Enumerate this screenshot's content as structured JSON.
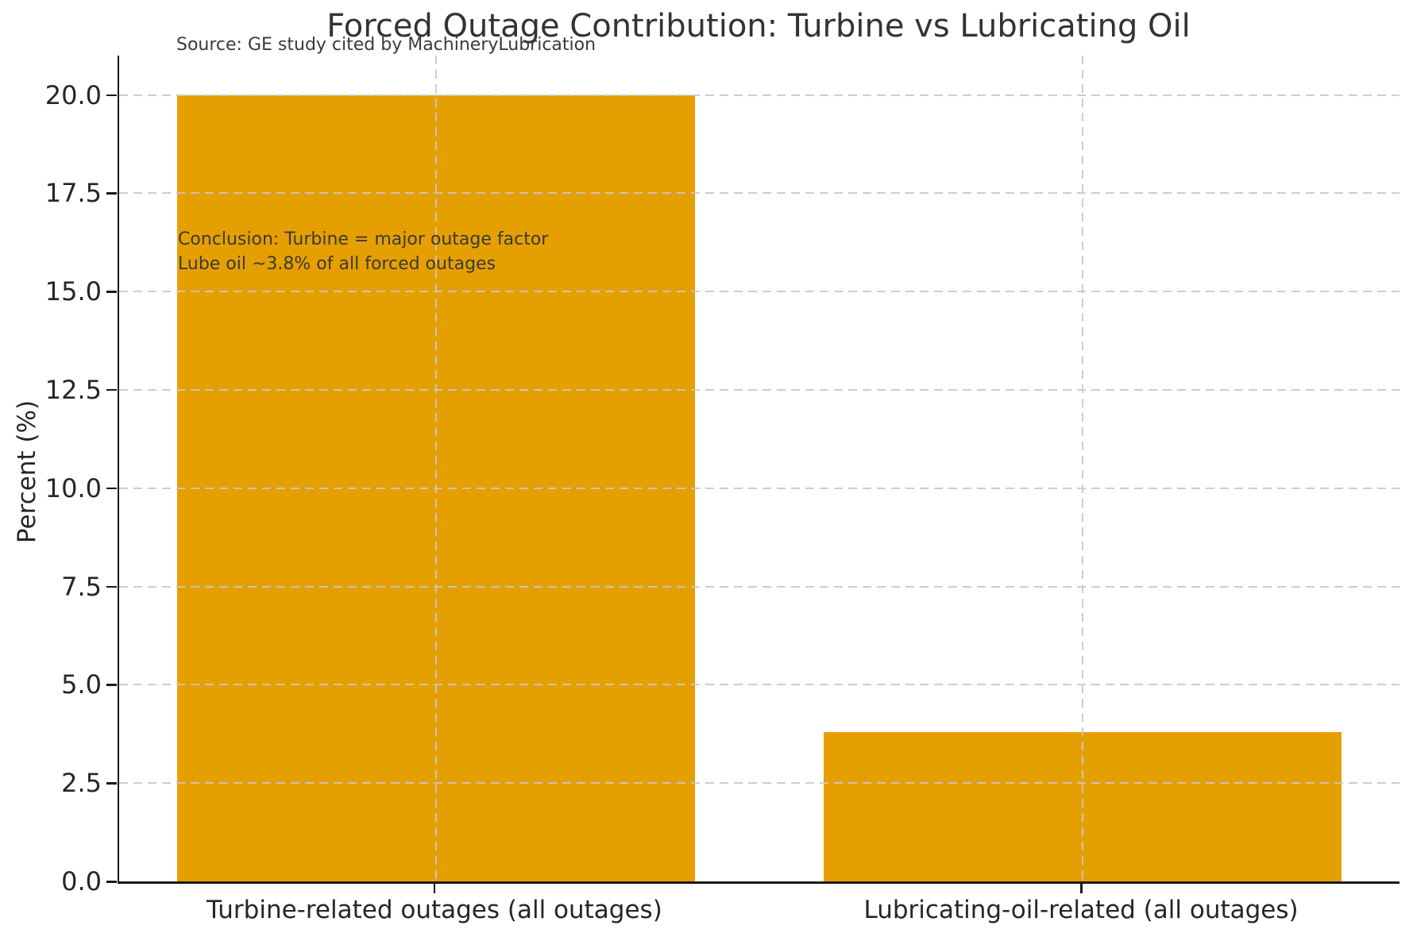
{
  "title": "Forced Outage Contribution: Turbine vs Lubricating Oil",
  "subtitle": "Source: GE study cited by MachineryLubrication",
  "annotation": {
    "line1": "Conclusion: Turbine = major outage factor",
    "line2": "Lube oil ~3.8% of all forced outages"
  },
  "chart_data": {
    "type": "bar",
    "title": "Forced Outage Contribution: Turbine vs Lubricating Oil",
    "subtitle": "Source: GE study cited by MachineryLubrication",
    "categories": [
      "Turbine-related outages (all outages)",
      "Lubricating-oil-related (all outages)"
    ],
    "values": [
      20.0,
      3.8
    ],
    "xlabel": "",
    "ylabel": "Percent (%)",
    "ylim": [
      0,
      21.0
    ],
    "xlim": [
      -0.49,
      1.49
    ],
    "bar_width": 0.8,
    "yticks": [
      0.0,
      2.5,
      5.0,
      7.5,
      10.0,
      12.5,
      15.0,
      17.5,
      20.0
    ],
    "ytick_labels": [
      "0.0",
      "2.5",
      "5.0",
      "7.5",
      "10.0",
      "12.5",
      "15.0",
      "17.5",
      "20.0"
    ],
    "grid": "dashed, horizontal at yticks and vertical at category centers, drawn over bars",
    "legend": "none",
    "bar_color": "#E69F00",
    "annotation_lines": [
      "Conclusion: Turbine = major outage factor",
      "Lube oil ~3.8% of all forced outages"
    ]
  },
  "colors": {
    "bar": "#E69F00",
    "grid": "#C8C8C8",
    "spine": "#1a1a1a",
    "text": "#262626",
    "secondary_text": "#3a3a3a",
    "background": "#ffffff"
  }
}
